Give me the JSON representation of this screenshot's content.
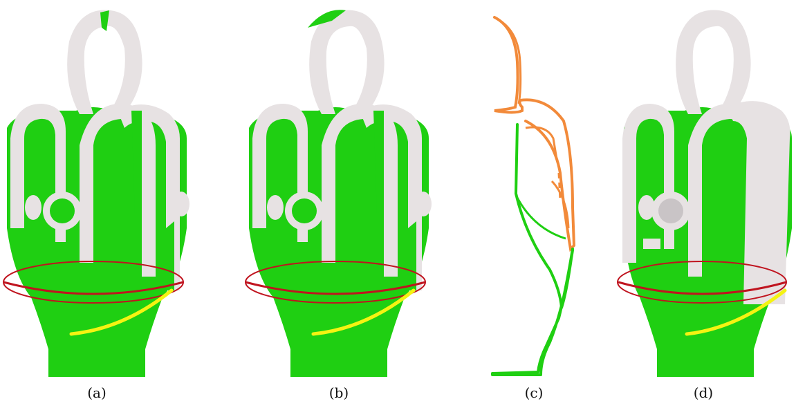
{
  "figure": {
    "captions": [
      "(a)",
      "(b)",
      "(c)",
      "(d)"
    ]
  },
  "colors": {
    "green": "#1fcf12",
    "white": "#e7e2e3",
    "orange": "#f28a3a",
    "red_ring": "#c0141f",
    "yellow_curve": "#f5f312"
  }
}
